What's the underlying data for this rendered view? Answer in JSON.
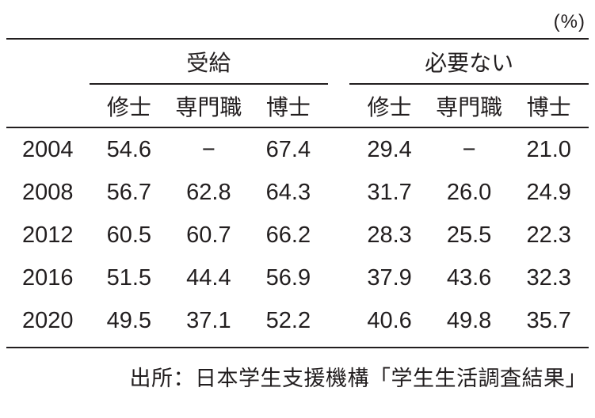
{
  "unit_label": "(%)",
  "table": {
    "group_headers": [
      "受給",
      "必要ない"
    ],
    "sub_headers": [
      "修士",
      "専門職",
      "博士",
      "修士",
      "専門職",
      "博士"
    ],
    "rows": [
      {
        "year": "2004",
        "values": [
          "54.6",
          "−",
          "67.4",
          "29.4",
          "−",
          "21.0"
        ]
      },
      {
        "year": "2008",
        "values": [
          "56.7",
          "62.8",
          "64.3",
          "31.7",
          "26.0",
          "24.9"
        ]
      },
      {
        "year": "2012",
        "values": [
          "60.5",
          "60.7",
          "66.2",
          "28.3",
          "25.5",
          "22.3"
        ]
      },
      {
        "year": "2016",
        "values": [
          "51.5",
          "44.4",
          "56.9",
          "37.9",
          "43.6",
          "32.3"
        ]
      },
      {
        "year": "2020",
        "values": [
          "49.5",
          "37.1",
          "52.2",
          "40.6",
          "49.8",
          "35.7"
        ]
      }
    ]
  },
  "source": "出所：日本学生支援機構「学生生活調査結果」",
  "colors": {
    "text": "#221e1f",
    "rule": "#221e1f",
    "background": "#ffffff"
  },
  "chart_data": {
    "type": "table",
    "unit": "%",
    "x": [
      2004,
      2008,
      2012,
      2016,
      2020
    ],
    "column_groups": [
      "受給",
      "必要ない"
    ],
    "series": [
      {
        "group": "受給",
        "name": "修士",
        "values": [
          54.6,
          56.7,
          60.5,
          51.5,
          49.5
        ]
      },
      {
        "group": "受給",
        "name": "専門職",
        "values": [
          null,
          62.8,
          60.7,
          44.4,
          37.1
        ]
      },
      {
        "group": "受給",
        "name": "博士",
        "values": [
          67.4,
          64.3,
          66.2,
          56.9,
          52.2
        ]
      },
      {
        "group": "必要ない",
        "name": "修士",
        "values": [
          29.4,
          31.7,
          28.3,
          37.9,
          40.6
        ]
      },
      {
        "group": "必要ない",
        "name": "専門職",
        "values": [
          null,
          26.0,
          25.5,
          43.6,
          49.8
        ]
      },
      {
        "group": "必要ない",
        "name": "博士",
        "values": [
          21.0,
          24.9,
          22.3,
          32.3,
          35.7
        ]
      }
    ],
    "missing_value_marker": "−",
    "source": "出所：日本学生支援機構「学生生活調査結果」"
  }
}
